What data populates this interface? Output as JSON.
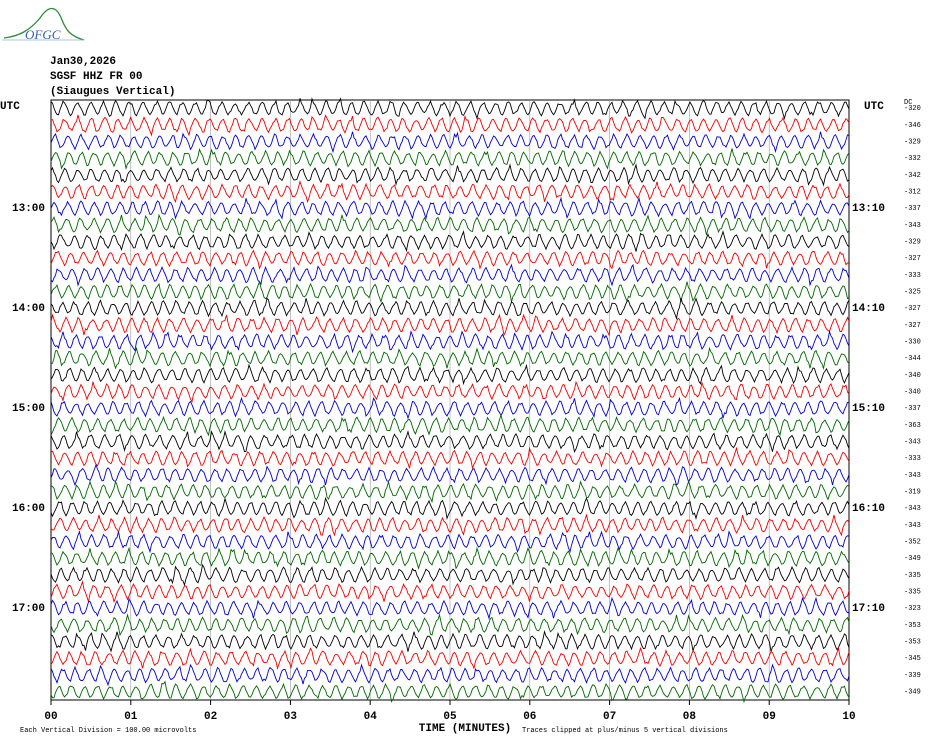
{
  "logo": "OFGC",
  "header": {
    "date": "Jan30,2026",
    "station": "SGSF HHZ FR 00",
    "description": "(Siaugues Vertical)"
  },
  "left_axis": {
    "title": "UTC",
    "labels": [
      "13:00",
      "14:00",
      "15:00",
      "16:00",
      "17:00"
    ]
  },
  "right_axis": {
    "title": "UTC",
    "labels": [
      "13:10",
      "14:10",
      "15:10",
      "16:10",
      "17:10"
    ]
  },
  "dc_offsets": {
    "title": "DC",
    "values": [
      -320,
      -346,
      -329,
      -332,
      -342,
      -312,
      -337,
      -343,
      -329,
      -327,
      -333,
      -325,
      -327,
      -327,
      -330,
      -344,
      -340,
      -340,
      -337,
      -363,
      -343,
      -333,
      -343,
      -319,
      -343,
      -343,
      -352,
      -349,
      -335,
      -335,
      -323,
      -353,
      -353,
      -345,
      -339,
      -349
    ]
  },
  "x_axis": {
    "title": "TIME (MINUTES)",
    "ticks": [
      "00",
      "01",
      "02",
      "03",
      "04",
      "05",
      "06",
      "07",
      "08",
      "09",
      "10"
    ]
  },
  "footer": {
    "scale": "Each Vertical Division =  100.00 microvolts",
    "clip": "Traces clipped at plus/minus 5 vertical divisions"
  }
}
